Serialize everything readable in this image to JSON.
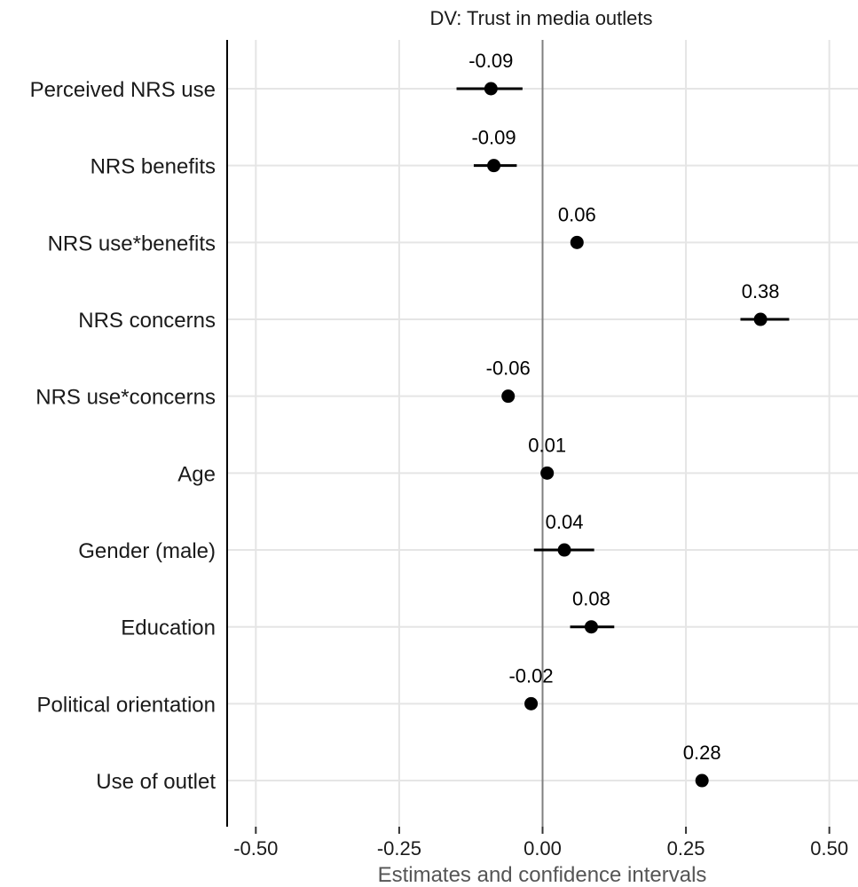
{
  "chart_data": {
    "type": "scatter",
    "title": "DV: Trust in media outlets",
    "xlabel": "Estimates and confidence intervals",
    "ylabel": "",
    "xlim": [
      -0.55,
      0.55
    ],
    "xticks": [
      -0.5,
      -0.25,
      0.0,
      0.25,
      0.5
    ],
    "xtick_labels": [
      "-0.50",
      "-0.25",
      "0.00",
      "0.25",
      "0.50"
    ],
    "grid": true,
    "reference_line": 0.0,
    "categories": [
      "Perceived NRS use",
      "NRS benefits",
      "NRS use*benefits",
      "NRS concerns",
      "NRS use*concerns",
      "Age",
      "Gender (male)",
      "Education",
      "Political orientation",
      "Use of outlet"
    ],
    "estimates": [
      -0.09,
      -0.085,
      0.06,
      0.38,
      -0.06,
      0.008,
      0.038,
      0.085,
      -0.02,
      0.278
    ],
    "ci_low": [
      -0.15,
      -0.12,
      0.05,
      0.345,
      -0.07,
      -0.002,
      -0.015,
      0.048,
      -0.03,
      0.268
    ],
    "ci_high": [
      -0.035,
      -0.045,
      0.07,
      0.43,
      -0.05,
      0.018,
      0.09,
      0.125,
      -0.01,
      0.288
    ],
    "data_labels": [
      "-0.09",
      "-0.09",
      "0.06",
      "0.38",
      "-0.06",
      "0.01",
      "0.04",
      "0.08",
      "-0.02",
      "0.28"
    ]
  }
}
